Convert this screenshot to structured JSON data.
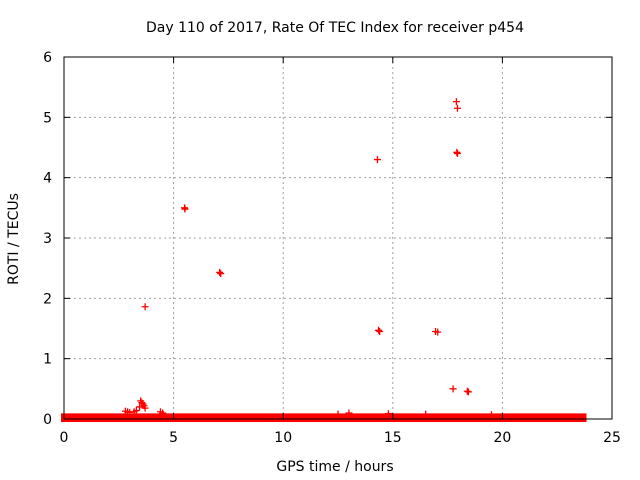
{
  "chart_data": {
    "type": "scatter",
    "title": "Day 110 of 2017, Rate Of TEC Index for receiver p454",
    "xlabel": "GPS time / hours",
    "ylabel": "ROTI / TECUs",
    "xlim": [
      0,
      25
    ],
    "ylim": [
      0,
      6
    ],
    "xticks": [
      0,
      5,
      10,
      15,
      20,
      25
    ],
    "yticks": [
      0,
      1,
      2,
      3,
      4,
      5,
      6
    ],
    "grid": true,
    "marker": "+",
    "color": "#ff0000",
    "points": [
      [
        3.7,
        1.86
      ],
      [
        5.5,
        3.5
      ],
      [
        5.52,
        3.48
      ],
      [
        7.1,
        2.43
      ],
      [
        7.15,
        2.41
      ],
      [
        14.3,
        4.3
      ],
      [
        14.35,
        1.47
      ],
      [
        14.4,
        1.45
      ],
      [
        16.95,
        1.45
      ],
      [
        17.05,
        1.44
      ],
      [
        17.9,
        5.26
      ],
      [
        17.95,
        5.15
      ],
      [
        17.92,
        4.42
      ],
      [
        17.95,
        4.4
      ],
      [
        17.75,
        0.5
      ],
      [
        18.4,
        0.46
      ],
      [
        18.45,
        0.45
      ],
      [
        3.5,
        0.3
      ],
      [
        3.55,
        0.27
      ],
      [
        3.6,
        0.25
      ],
      [
        3.65,
        0.22
      ],
      [
        3.45,
        0.2
      ],
      [
        3.7,
        0.18
      ],
      [
        2.8,
        0.13
      ],
      [
        2.9,
        0.12
      ],
      [
        3.0,
        0.11
      ],
      [
        3.2,
        0.12
      ],
      [
        3.3,
        0.14
      ],
      [
        4.4,
        0.12
      ],
      [
        4.5,
        0.1
      ],
      [
        12.5,
        0.08
      ],
      [
        13.0,
        0.1
      ],
      [
        14.8,
        0.09
      ],
      [
        16.5,
        0.08
      ],
      [
        19.5,
        0.07
      ]
    ],
    "baseline_band": {
      "x_range": [
        0,
        23.7
      ],
      "y_range": [
        0,
        0.06
      ]
    }
  }
}
